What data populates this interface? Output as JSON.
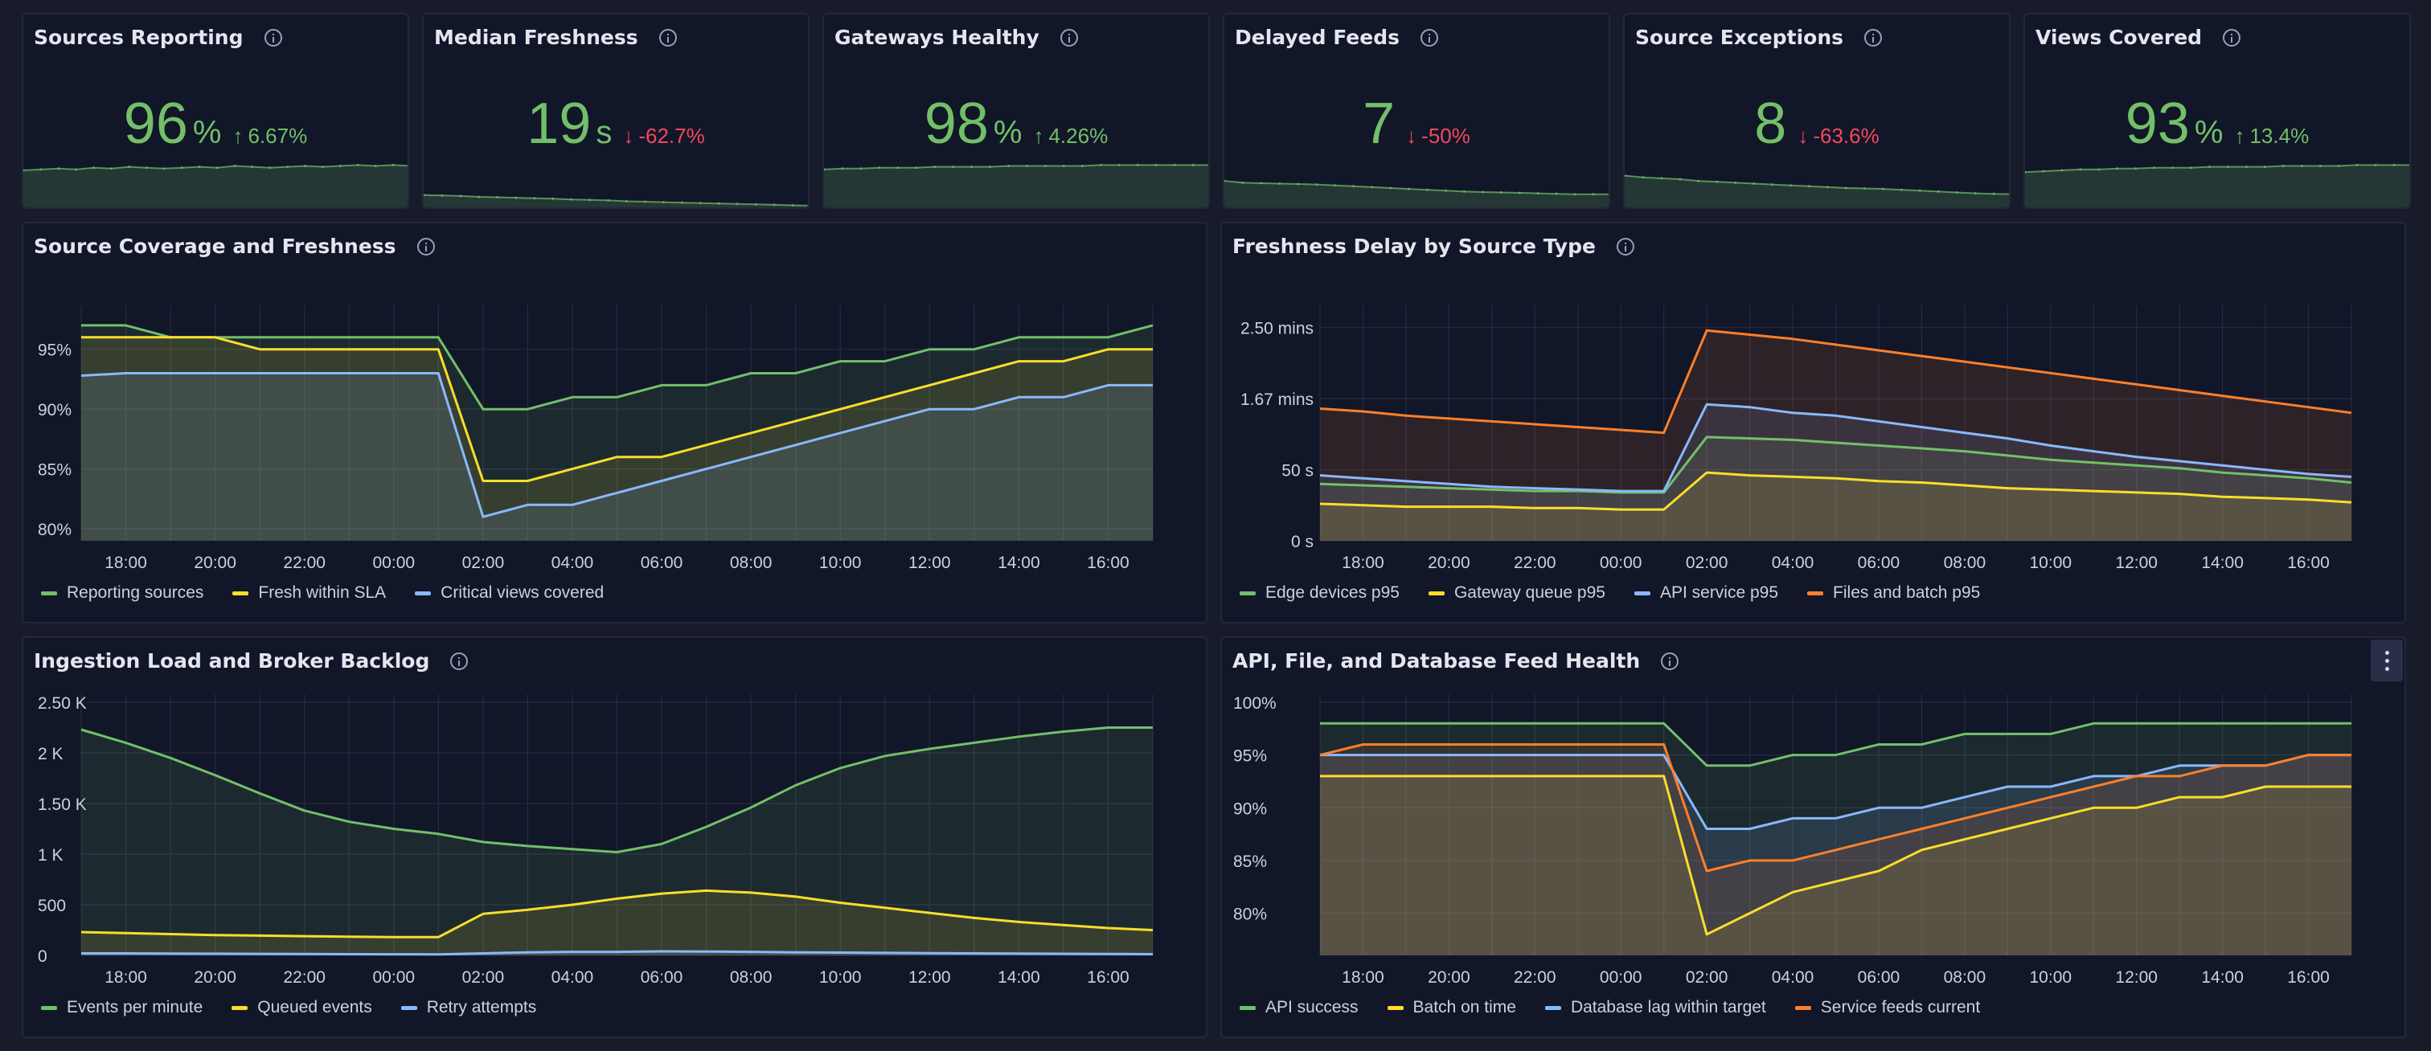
{
  "stats": [
    {
      "title": "Sources Reporting",
      "value": "96",
      "unit": "%",
      "delta": "6.67%",
      "direction": "up",
      "trend": [
        0.4,
        0.41,
        0.42,
        0.41,
        0.43,
        0.42,
        0.44,
        0.43,
        0.42,
        0.43,
        0.44,
        0.43,
        0.45,
        0.44,
        0.43,
        0.44,
        0.45,
        0.44,
        0.45,
        0.46,
        0.45,
        0.46,
        0.45
      ],
      "fill": true
    },
    {
      "title": "Median Freshness",
      "value": "19",
      "unit": "s",
      "delta": "-62.7%",
      "direction": "down",
      "trend": [
        0.12,
        0.115,
        0.11,
        0.1,
        0.095,
        0.09,
        0.085,
        0.08,
        0.07,
        0.065,
        0.06,
        0.05,
        0.045,
        0.04,
        0.035,
        0.03,
        0.025,
        0.02,
        0.015,
        0.01,
        0.005,
        0.0
      ],
      "fill": true
    },
    {
      "title": "Gateways Healthy",
      "value": "98",
      "unit": "%",
      "delta": "4.26%",
      "direction": "up",
      "trend": [
        0.41,
        0.42,
        0.42,
        0.43,
        0.43,
        0.43,
        0.44,
        0.44,
        0.44,
        0.44,
        0.45,
        0.45,
        0.45,
        0.45,
        0.45,
        0.46,
        0.46,
        0.46,
        0.46,
        0.46,
        0.46,
        0.46
      ],
      "fill": true
    },
    {
      "title": "Delayed Feeds",
      "value": "7",
      "unit": "",
      "delta": "-50%",
      "direction": "down",
      "trend": [
        0.28,
        0.26,
        0.255,
        0.25,
        0.245,
        0.24,
        0.23,
        0.22,
        0.21,
        0.2,
        0.19,
        0.18,
        0.17,
        0.16,
        0.155,
        0.15,
        0.145,
        0.14,
        0.135,
        0.13,
        0.13,
        0.13
      ],
      "fill": true
    },
    {
      "title": "Source Exceptions",
      "value": "8",
      "unit": "",
      "delta": "-63.6%",
      "direction": "down",
      "trend": [
        0.34,
        0.32,
        0.31,
        0.3,
        0.28,
        0.27,
        0.26,
        0.25,
        0.24,
        0.23,
        0.22,
        0.21,
        0.2,
        0.195,
        0.19,
        0.18,
        0.17,
        0.16,
        0.15,
        0.14,
        0.135,
        0.13
      ],
      "fill": true
    },
    {
      "title": "Views Covered",
      "value": "93",
      "unit": "%",
      "delta": "13.4%",
      "direction": "up",
      "trend": [
        0.38,
        0.39,
        0.4,
        0.41,
        0.41,
        0.42,
        0.42,
        0.43,
        0.43,
        0.43,
        0.44,
        0.44,
        0.44,
        0.44,
        0.45,
        0.45,
        0.45,
        0.45,
        0.46,
        0.46,
        0.46,
        0.46
      ],
      "fill": true
    }
  ],
  "colors": {
    "green": "#73bf69",
    "yellow": "#fade2a",
    "blue": "#8ab8ff",
    "orange": "#ff7f2a",
    "red": "#f2495c",
    "statGreen": "#73bf69",
    "axisText": "#cdd1de",
    "grid": "#262b40"
  },
  "x_ticks": [
    "18:00",
    "20:00",
    "22:00",
    "00:00",
    "02:00",
    "04:00",
    "06:00",
    "08:00",
    "10:00",
    "12:00",
    "14:00",
    "16:00"
  ],
  "panels": {
    "coverage": {
      "title": "Source Coverage and Freshness",
      "chart_data": {
        "type": "line",
        "x": [
          "17:00",
          "18:00",
          "19:00",
          "20:00",
          "21:00",
          "22:00",
          "23:00",
          "00:00",
          "01:00",
          "02:00",
          "03:00",
          "04:00",
          "05:00",
          "06:00",
          "07:00",
          "08:00",
          "09:00",
          "10:00",
          "11:00",
          "12:00",
          "13:00",
          "14:00",
          "15:00",
          "16:00",
          "17:00"
        ],
        "y_ticks": [
          "80%",
          "85%",
          "90%",
          "95%"
        ],
        "ylim": [
          79,
          98
        ],
        "y_tick_values": [
          80,
          85,
          90,
          95
        ],
        "series": [
          {
            "name": "Reporting sources",
            "color": "green",
            "values": [
              97,
              97,
              96,
              96,
              96,
              96,
              96,
              96,
              96,
              90,
              90,
              91,
              91,
              92,
              92,
              93,
              93,
              94,
              94,
              95,
              95,
              96,
              96,
              96,
              97
            ]
          },
          {
            "name": "Fresh within SLA",
            "color": "yellow",
            "values": [
              96,
              96,
              96,
              96,
              95,
              95,
              95,
              95,
              95,
              84,
              84,
              85,
              86,
              86,
              87,
              88,
              89,
              90,
              91,
              92,
              93,
              94,
              94,
              95,
              95
            ]
          },
          {
            "name": "Critical views covered",
            "color": "blue",
            "values": [
              92.8,
              93,
              93,
              93,
              93,
              93,
              93,
              93,
              93,
              81,
              82,
              82,
              83,
              84,
              85,
              86,
              87,
              88,
              89,
              90,
              90,
              91,
              91,
              92,
              92
            ]
          }
        ]
      }
    },
    "delay": {
      "title": "Freshness Delay by Source Type",
      "chart_data": {
        "type": "area",
        "x": [
          "17:00",
          "18:00",
          "19:00",
          "20:00",
          "21:00",
          "22:00",
          "23:00",
          "00:00",
          "01:00",
          "02:00",
          "03:00",
          "04:00",
          "05:00",
          "06:00",
          "07:00",
          "08:00",
          "09:00",
          "10:00",
          "11:00",
          "12:00",
          "13:00",
          "14:00",
          "15:00",
          "16:00",
          "17:00"
        ],
        "y_ticks": [
          "0 s",
          "50 s",
          "1.67 mins",
          "2.50 mins"
        ],
        "y_tick_values": [
          0,
          50,
          100,
          150
        ],
        "ylim": [
          0,
          160
        ],
        "series": [
          {
            "name": "Edge devices p95",
            "color": "green",
            "values": [
              40,
              39,
              38,
              37,
              36,
              35,
              35,
              34,
              34,
              73,
              72,
              71,
              69,
              67,
              65,
              63,
              60,
              57,
              55,
              53,
              51,
              48,
              46,
              44,
              41
            ]
          },
          {
            "name": "Gateway queue p95",
            "color": "yellow",
            "values": [
              26,
              25,
              24,
              24,
              24,
              23,
              23,
              22,
              22,
              48,
              46,
              45,
              44,
              42,
              41,
              39,
              37,
              36,
              35,
              34,
              33,
              31,
              30,
              29,
              27
            ]
          },
          {
            "name": "API service p95",
            "color": "blue",
            "values": [
              46,
              44,
              42,
              40,
              38,
              37,
              36,
              35,
              35,
              96,
              94,
              90,
              88,
              84,
              80,
              76,
              72,
              67,
              63,
              59,
              56,
              53,
              50,
              47,
              45
            ]
          },
          {
            "name": "Files and batch p95",
            "color": "orange",
            "values": [
              93,
              91,
              88,
              86,
              84,
              82,
              80,
              78,
              76,
              148,
              145,
              142,
              138,
              134,
              130,
              126,
              122,
              118,
              114,
              110,
              106,
              102,
              98,
              94,
              90
            ]
          }
        ]
      }
    },
    "ingestion": {
      "title": "Ingestion Load and Broker Backlog",
      "chart_data": {
        "type": "area",
        "x": [
          "17:00",
          "18:00",
          "19:00",
          "20:00",
          "21:00",
          "22:00",
          "23:00",
          "00:00",
          "01:00",
          "02:00",
          "03:00",
          "04:00",
          "05:00",
          "06:00",
          "07:00",
          "08:00",
          "09:00",
          "10:00",
          "11:00",
          "12:00",
          "13:00",
          "14:00",
          "15:00",
          "16:00",
          "17:00"
        ],
        "y_ticks": [
          "0",
          "500",
          "1 K",
          "1.50 K",
          "2 K",
          "2.50 K"
        ],
        "y_tick_values": [
          0,
          500,
          1000,
          1500,
          2000,
          2500
        ],
        "ylim": [
          0,
          2500
        ],
        "series": [
          {
            "name": "Events per minute",
            "color": "green",
            "values": [
              2230,
              2100,
              1950,
              1780,
              1600,
              1430,
              1320,
              1250,
              1200,
              1120,
              1080,
              1050,
              1020,
              1100,
              1270,
              1460,
              1680,
              1850,
              1970,
              2040,
              2100,
              2160,
              2210,
              2250,
              2250
            ]
          },
          {
            "name": "Queued events",
            "color": "yellow",
            "values": [
              230,
              220,
              210,
              200,
              195,
              190,
              185,
              180,
              180,
              410,
              450,
              500,
              560,
              610,
              640,
              620,
              580,
              520,
              470,
              420,
              370,
              330,
              300,
              270,
              250
            ]
          },
          {
            "name": "Retry attempts",
            "color": "blue",
            "values": [
              20,
              20,
              18,
              17,
              15,
              14,
              12,
              11,
              10,
              20,
              30,
              35,
              35,
              40,
              38,
              35,
              30,
              28,
              25,
              22,
              20,
              18,
              16,
              14,
              12
            ]
          }
        ]
      }
    },
    "health": {
      "title": "API, File, and Database Feed Health",
      "chart_data": {
        "type": "line",
        "x": [
          "17:00",
          "18:00",
          "19:00",
          "20:00",
          "21:00",
          "22:00",
          "23:00",
          "00:00",
          "01:00",
          "02:00",
          "03:00",
          "04:00",
          "05:00",
          "06:00",
          "07:00",
          "08:00",
          "09:00",
          "10:00",
          "11:00",
          "12:00",
          "13:00",
          "14:00",
          "15:00",
          "16:00",
          "17:00"
        ],
        "y_ticks": [
          "80%",
          "85%",
          "90%",
          "95%",
          "100%"
        ],
        "y_tick_values": [
          80,
          85,
          90,
          95,
          100
        ],
        "ylim": [
          76,
          100
        ],
        "series": [
          {
            "name": "API success",
            "color": "green",
            "values": [
              98,
              98,
              98,
              98,
              98,
              98,
              98,
              98,
              98,
              94,
              94,
              95,
              95,
              96,
              96,
              97,
              97,
              97,
              98,
              98,
              98,
              98,
              98,
              98,
              98
            ]
          },
          {
            "name": "Batch on time",
            "color": "yellow",
            "values": [
              93,
              93,
              93,
              93,
              93,
              93,
              93,
              93,
              93,
              78,
              80,
              82,
              83,
              84,
              86,
              87,
              88,
              89,
              90,
              90,
              91,
              91,
              92,
              92,
              92
            ]
          },
          {
            "name": "Database lag within target",
            "color": "blue",
            "values": [
              95,
              95,
              95,
              95,
              95,
              95,
              95,
              95,
              95,
              88,
              88,
              89,
              89,
              90,
              90,
              91,
              92,
              92,
              93,
              93,
              94,
              94,
              94,
              95,
              95
            ]
          },
          {
            "name": "Service feeds current",
            "color": "orange",
            "values": [
              95,
              96,
              96,
              96,
              96,
              96,
              96,
              96,
              96,
              84,
              85,
              85,
              86,
              87,
              88,
              89,
              90,
              91,
              92,
              93,
              93,
              94,
              94,
              95,
              95
            ]
          }
        ]
      }
    }
  }
}
